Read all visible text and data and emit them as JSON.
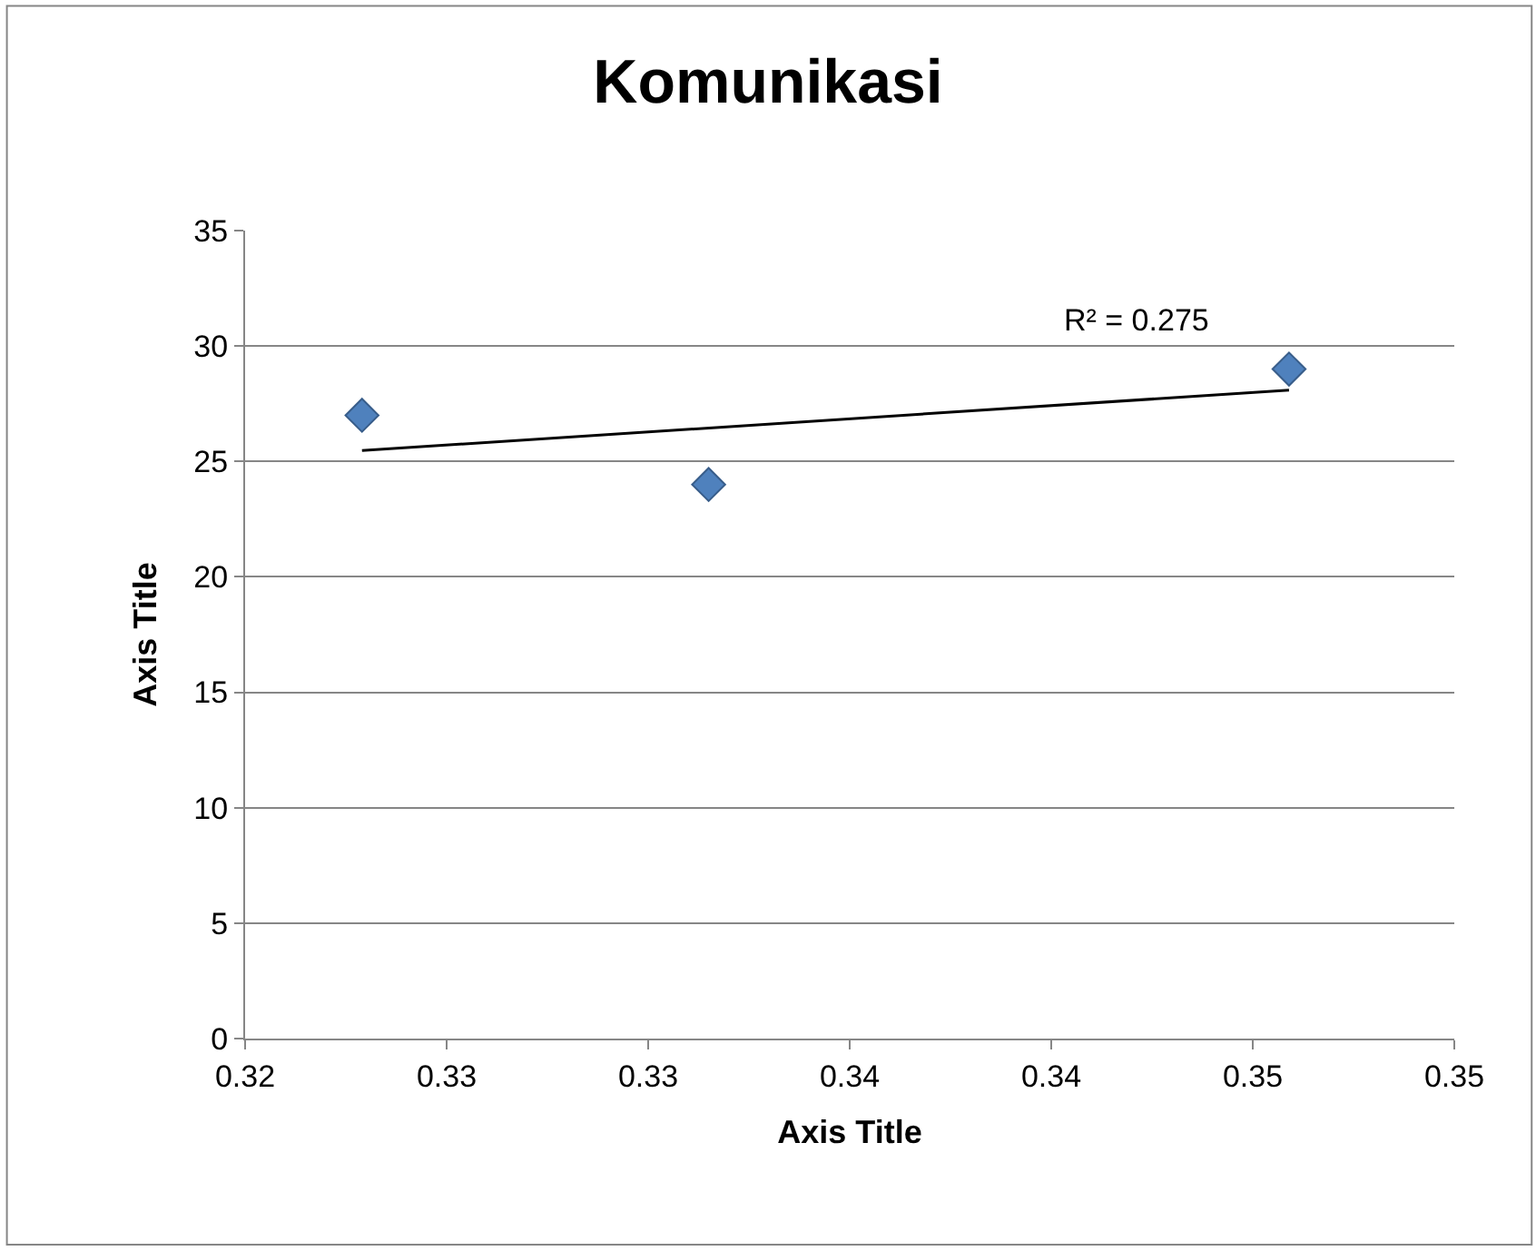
{
  "chart_data": {
    "type": "scatter",
    "title": "Komunikasi",
    "xlabel": "Axis Title",
    "ylabel": "Axis Title",
    "x": [
      0.3229,
      0.3315,
      0.3459
    ],
    "series": [
      {
        "color": "#4f81bd",
        "values": [
          27,
          24,
          29
        ],
        "marker": "diamond"
      },
      {
        "type": "line",
        "color": "#000000",
        "x": [
          0.3229,
          0.3459
        ],
        "values": [
          25.47,
          28.09
        ]
      }
    ],
    "annotations": [
      "R² = 0.275"
    ],
    "xlim": [
      0.32,
      0.35
    ],
    "ylim": [
      0,
      35
    ],
    "xticks": [
      {
        "value": 0.32,
        "label": "0.32"
      },
      {
        "value": 0.325,
        "label": "0.33"
      },
      {
        "value": 0.33,
        "label": "0.33"
      },
      {
        "value": 0.335,
        "label": "0.34"
      },
      {
        "value": 0.34,
        "label": "0.34"
      },
      {
        "value": 0.345,
        "label": "0.35"
      },
      {
        "value": 0.35,
        "label": "0.35"
      }
    ],
    "yticks": [
      0,
      5,
      10,
      15,
      20,
      25,
      30,
      35
    ],
    "grid": "y"
  }
}
